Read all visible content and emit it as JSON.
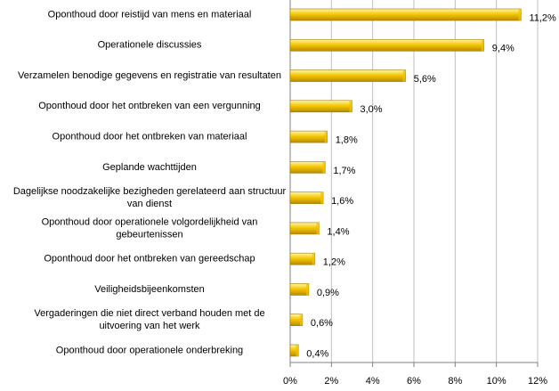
{
  "chart_data": {
    "type": "bar",
    "orientation": "horizontal",
    "categories": [
      "Oponthoud door reistijd van mens en materiaal",
      "Operationele discussies",
      "Verzamelen benodige gegevens en registratie van resultaten",
      "Oponthoud door het ontbreken van een vergunning",
      "Oponthoud door het ontbreken van materiaal",
      "Geplande wachttijden",
      [
        "Dagelijkse noodzakelijke bezigheden gerelateerd aan structuur",
        "van dienst"
      ],
      [
        "Oponthoud door operationele volgordelijkheid van",
        "gebeurtenissen"
      ],
      "Oponthoud door het ontbreken van gereedschap",
      "Veiligheidsbijeenkomsten",
      [
        "Vergaderingen die niet direct verband houden met de",
        "uitvoering van het werk"
      ],
      "Oponthoud door operationele onderbreking"
    ],
    "values": [
      11.2,
      9.4,
      5.6,
      3.0,
      1.8,
      1.7,
      1.6,
      1.4,
      1.2,
      0.9,
      0.6,
      0.4
    ],
    "value_labels": [
      "11,2%",
      "9,4%",
      "5,6%",
      "3,0%",
      "1,8%",
      "1,7%",
      "1,6%",
      "1,4%",
      "1,2%",
      "0,9%",
      "0,6%",
      "0,4%"
    ],
    "color": "#f2c200",
    "xlim": [
      0,
      12
    ],
    "xticks": [
      {
        "value": 0,
        "label": "0%"
      },
      {
        "value": 2,
        "label": "2%"
      },
      {
        "value": 4,
        "label": "4%"
      },
      {
        "value": 6,
        "label": "6%"
      },
      {
        "value": 8,
        "label": "8%"
      },
      {
        "value": 10,
        "label": "10%"
      },
      {
        "value": 12,
        "label": "12%"
      }
    ],
    "grid": true
  }
}
